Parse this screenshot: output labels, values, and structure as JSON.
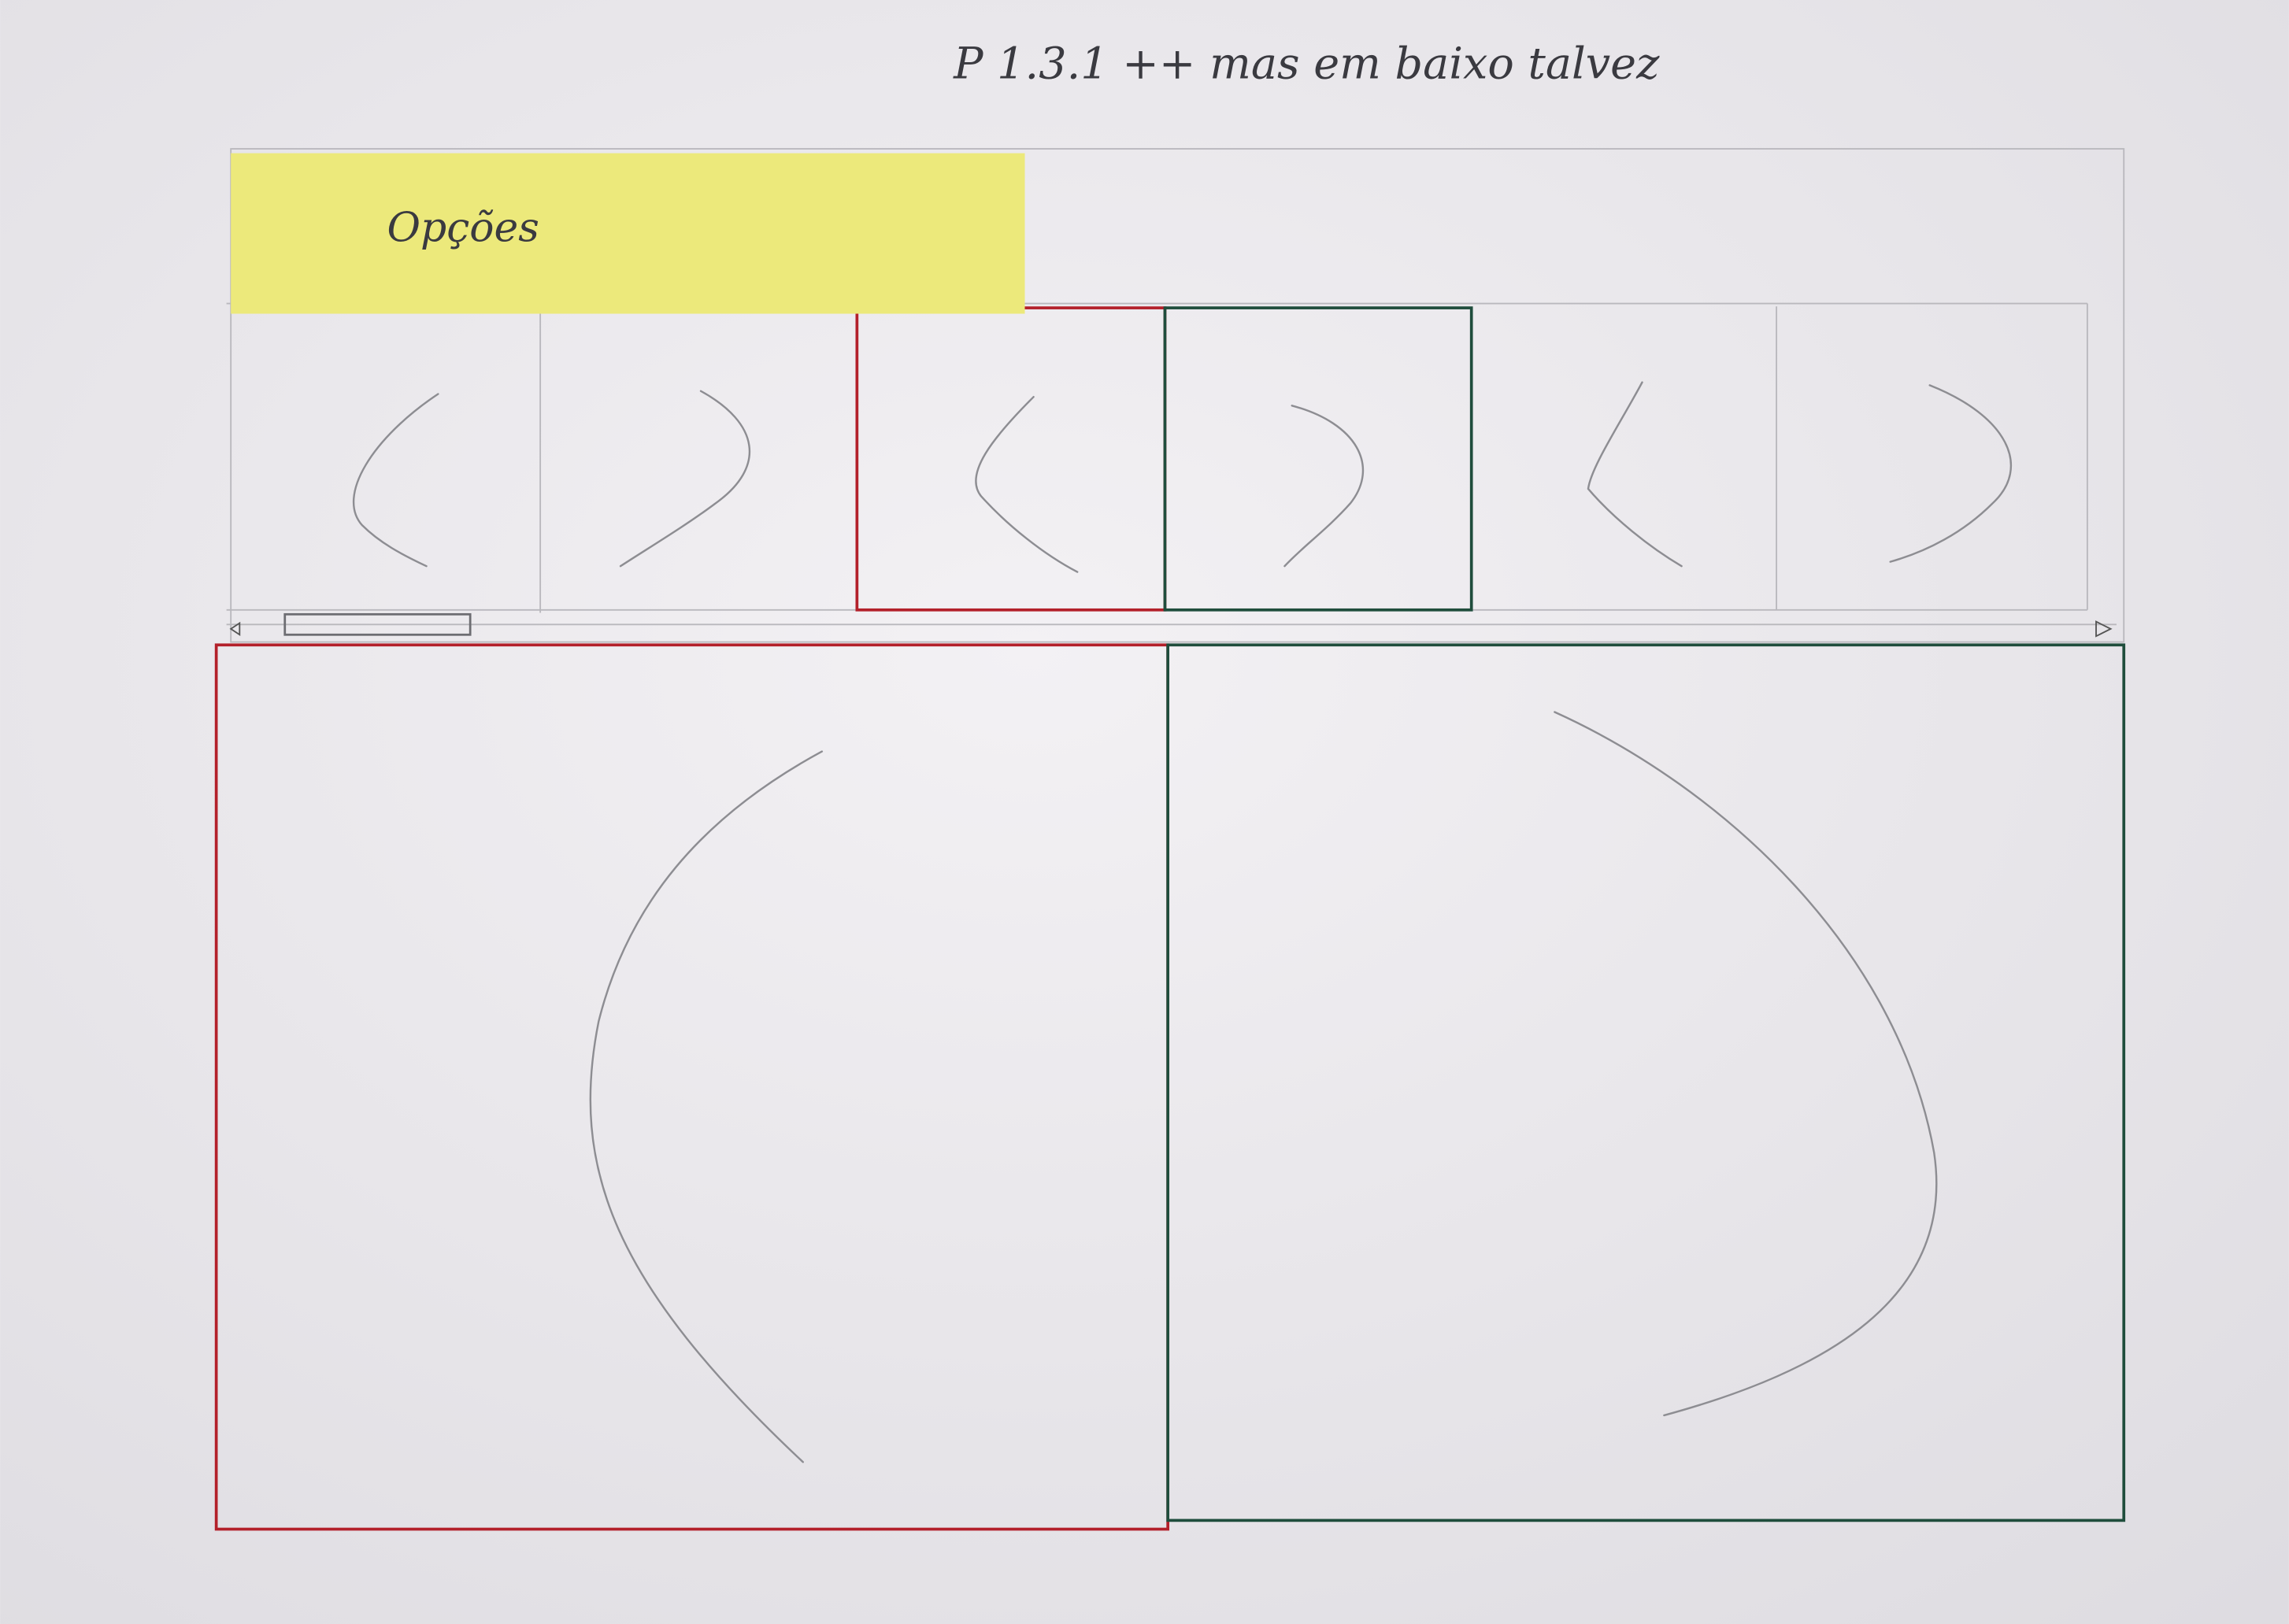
{
  "header": {
    "title": "P 1.3.1 ++ mas em baixo talvez"
  },
  "sticky_note": {
    "label": "Opções"
  }
}
